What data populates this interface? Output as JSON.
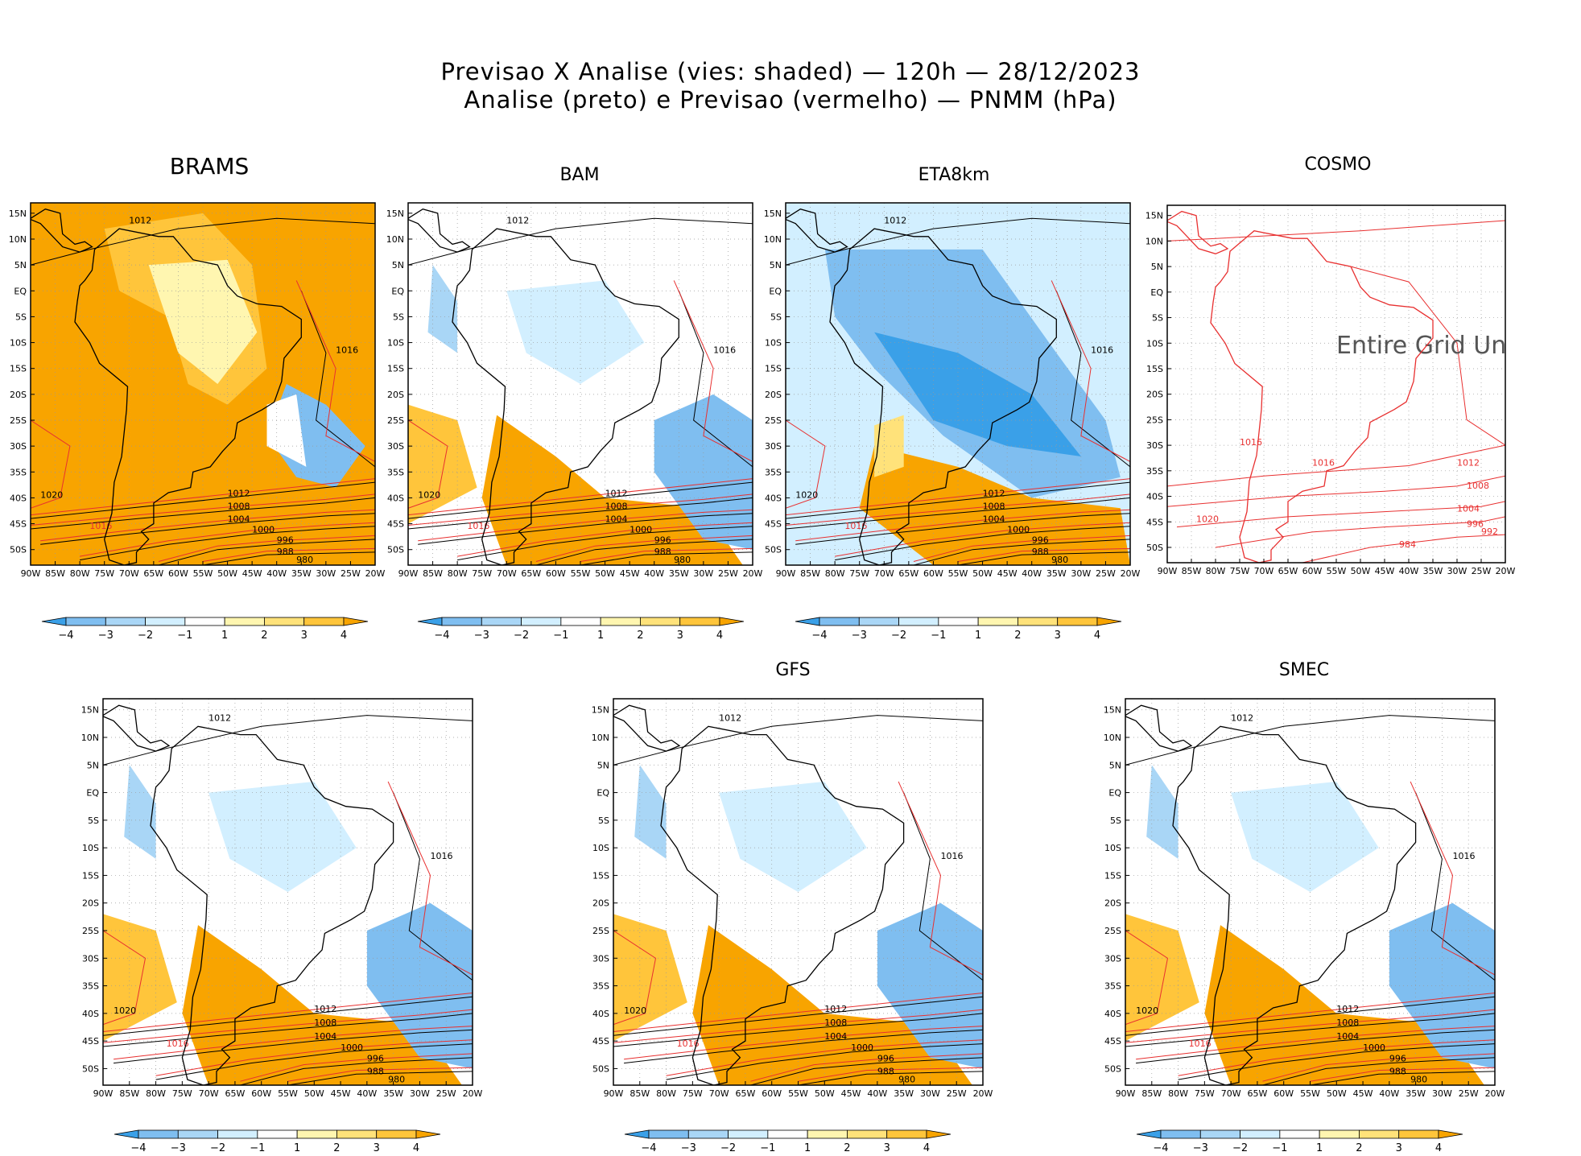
{
  "title": {
    "line1": "Previsao X Analise (vies: shaded) — 120h — 28/12/2023",
    "line2": "Analise (preto) e Previsao (vermelho) — PNMM (hPa)"
  },
  "lat_labels": [
    "15N",
    "10N",
    "5N",
    "EQ",
    "5S",
    "10S",
    "15S",
    "20S",
    "25S",
    "30S",
    "35S",
    "40S",
    "45S",
    "50S"
  ],
  "lon_labels": [
    "90W",
    "85W",
    "80W",
    "75W",
    "70W",
    "65W",
    "60W",
    "55W",
    "50W",
    "45W",
    "40W",
    "35W",
    "30W",
    "25W",
    "20W"
  ],
  "colorbar_labels": [
    "−4",
    "−3",
    "−2",
    "−1",
    "1",
    "2",
    "3",
    "4"
  ],
  "colors": {
    "neg4": "#3aa0e8",
    "neg3": "#7fbef0",
    "neg2": "#a9d6f6",
    "neg1": "#d2efff",
    "zero": "#ffffff",
    "pos1": "#fff6b0",
    "pos2": "#ffe27a",
    "pos3": "#ffc53b",
    "pos4": "#f8a400",
    "analysis": "#000000",
    "forecast": "#e83030"
  },
  "panels": [
    {
      "name": "BRAMS",
      "title": "BRAMS",
      "bias": "warm",
      "undefined_label": ""
    },
    {
      "name": "BAM",
      "title": "BAM",
      "bias": "mixed",
      "undefined_label": ""
    },
    {
      "name": "ETA8km",
      "title": "ETA8km",
      "bias": "cold",
      "undefined_label": ""
    },
    {
      "name": "COSMO",
      "title": "COSMO",
      "bias": "none",
      "undefined_label": "Entire Grid Und"
    },
    {
      "name": "Panel5",
      "title": "",
      "bias": "mixed",
      "undefined_label": ""
    },
    {
      "name": "GFS",
      "title": "GFS",
      "bias": "mixed",
      "undefined_label": ""
    },
    {
      "name": "SMEC",
      "title": "SMEC",
      "bias": "mixed",
      "undefined_label": ""
    }
  ],
  "isobar_labels": {
    "a": "1012",
    "b": "1016",
    "c": "1008",
    "d": "1004",
    "e": "1000",
    "f": "996",
    "g": "992",
    "h": "988",
    "i": "984",
    "j": "980",
    "k": "1020"
  }
}
